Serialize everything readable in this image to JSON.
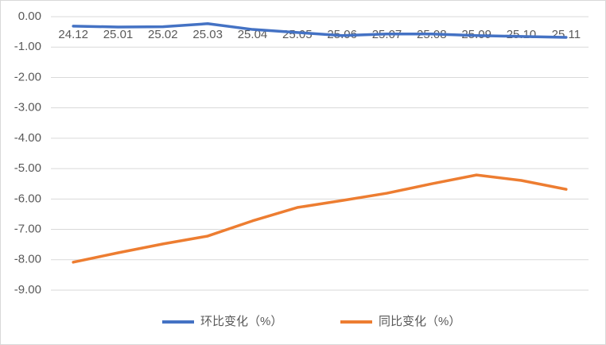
{
  "chart_data": {
    "type": "line",
    "categories": [
      "24.12",
      "25.01",
      "25.02",
      "25.03",
      "25.04",
      "25.05",
      "25.06",
      "25.07",
      "25.08",
      "25.09",
      "25.10",
      "25.11"
    ],
    "series": [
      {
        "name": "环比变化（%）",
        "color": "#4472c4",
        "values": [
          -0.31,
          -0.34,
          -0.33,
          -0.23,
          -0.42,
          -0.52,
          -0.62,
          -0.57,
          -0.57,
          -0.62,
          -0.65,
          -0.68
        ]
      },
      {
        "name": "同比变化（%）",
        "color": "#ed7d31",
        "values": [
          -8.08,
          -7.77,
          -7.48,
          -7.22,
          -6.72,
          -6.28,
          -6.05,
          -5.81,
          -5.5,
          -5.21,
          -5.39,
          -5.68
        ]
      }
    ],
    "ylim": [
      -9,
      0
    ],
    "yticks": [
      {
        "value": 0,
        "label": "0.00"
      },
      {
        "value": -1,
        "label": "-1.00"
      },
      {
        "value": -2,
        "label": "-2.00"
      },
      {
        "value": -3,
        "label": "-3.00"
      },
      {
        "value": -4,
        "label": "-4.00"
      },
      {
        "value": -5,
        "label": "-5.00"
      },
      {
        "value": -6,
        "label": "-6.00"
      },
      {
        "value": -7,
        "label": "-7.00"
      },
      {
        "value": -8,
        "label": "-8.00"
      },
      {
        "value": -9,
        "label": "-9.00"
      }
    ],
    "grid": true,
    "legend": "bottom"
  }
}
